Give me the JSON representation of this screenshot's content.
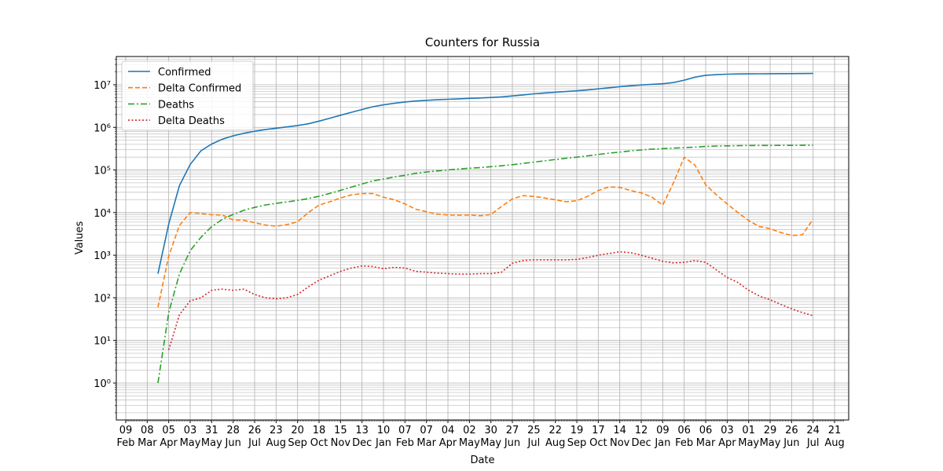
{
  "chart_data": {
    "type": "line",
    "title": "Counters for Russia",
    "xlabel": "Date",
    "ylabel": "Values",
    "categories": [
      "09 Feb",
      null,
      "08 Mar",
      null,
      "05 Apr",
      null,
      "03 May",
      null,
      "31 May",
      null,
      "28 Jun",
      null,
      "26 Jul",
      null,
      "23 Aug",
      null,
      "20 Sep",
      null,
      "18 Oct",
      null,
      "15 Nov",
      null,
      "13 Dec",
      null,
      "10 Jan",
      null,
      "07 Feb",
      null,
      "07 Mar",
      null,
      "04 Apr",
      null,
      "02 May",
      null,
      "30 May",
      null,
      "27 Jun",
      null,
      "25 Jul",
      null,
      "22 Aug",
      null,
      "19 Sep",
      null,
      "17 Oct",
      null,
      "14 Nov",
      null,
      "12 Dec",
      null,
      "09 Jan",
      null,
      "06 Feb",
      null,
      "06 Mar",
      null,
      "03 Apr",
      null,
      "01 May",
      null,
      "29 May",
      null,
      "26 Jun",
      null,
      "24 Jul",
      null,
      "21 Aug"
    ],
    "series": [
      {
        "name": "Confirmed",
        "color": "#1f77b4",
        "linestyle": "solid",
        "values": [
          null,
          null,
          null,
          367,
          5389,
          42853,
          134687,
          281752,
          405843,
          528267,
          634437,
          727162,
          811073,
          885718,
          956749,
          1025505,
          1103399,
          1215001,
          1399334,
          1636781,
          1925825,
          2258373,
          2629699,
          3050248,
          3379103,
          3677352,
          3938153,
          4152344,
          4312181,
          4438628,
          4563056,
          4684148,
          4792354,
          4896868,
          5026168,
          5208687,
          5470931,
          5783333,
          6126541,
          6416046,
          6690140,
          6937333,
          7203461,
          7561271,
          8009273,
          8520133,
          9026581,
          9474358,
          9887867,
          10236526,
          10547599,
          11242000,
          12848000,
          15100000,
          16700000,
          17300000,
          17700000,
          17930000,
          18050000,
          18120000,
          18180000,
          18230000,
          18270000,
          18320000,
          18410000,
          null,
          null
        ]
      },
      {
        "name": "Delta Confirmed",
        "color": "#ff7f0e",
        "linestyle": "dashed",
        "values": [
          null,
          null,
          null,
          60,
          950,
          5000,
          10000,
          9500,
          8900,
          8800,
          6700,
          6600,
          5800,
          5100,
          4800,
          5200,
          6100,
          10000,
          15000,
          18000,
          22000,
          26000,
          28000,
          28000,
          23000,
          20000,
          16000,
          12000,
          10500,
          9200,
          8800,
          8700,
          8800,
          8500,
          9000,
          14000,
          21000,
          25000,
          24000,
          22000,
          20000,
          18000,
          19000,
          24000,
          33000,
          40000,
          39000,
          33000,
          29000,
          23000,
          15000,
          50000,
          200000,
          130000,
          45000,
          26000,
          16000,
          10000,
          6500,
          4700,
          4200,
          3400,
          2900,
          3000,
          7000,
          null,
          null
        ]
      },
      {
        "name": "Deaths",
        "color": "#2ca02c",
        "linestyle": "dashdot",
        "values": [
          null,
          null,
          null,
          1,
          45,
          361,
          1280,
          2631,
          4693,
          6938,
          9073,
          11335,
          13249,
          15131,
          16448,
          17820,
          19339,
          21260,
          24187,
          28235,
          33186,
          39527,
          46941,
          55265,
          61381,
          68412,
          75010,
          83366,
          89809,
          95091,
          100374,
          105582,
          110186,
          113976,
          119903,
          125674,
          133282,
          142253,
          152835,
          164094,
          176450,
          188786,
          199808,
          214372,
          230600,
          248000,
          264000,
          281000,
          296000,
          308000,
          318000,
          326000,
          334000,
          345000,
          357000,
          365000,
          369000,
          372000,
          374000,
          375600,
          376800,
          377800,
          378600,
          379300,
          380400,
          null,
          null
        ]
      },
      {
        "name": "Delta Deaths",
        "color": "#d62728",
        "linestyle": "dotted",
        "values": [
          null,
          null,
          null,
          null,
          6,
          40,
          85,
          100,
          150,
          160,
          150,
          160,
          120,
          100,
          95,
          100,
          120,
          180,
          260,
          330,
          420,
          500,
          560,
          540,
          480,
          520,
          500,
          420,
          400,
          380,
          370,
          360,
          360,
          370,
          370,
          400,
          650,
          750,
          780,
          780,
          780,
          780,
          800,
          880,
          1000,
          1100,
          1200,
          1150,
          1000,
          850,
          720,
          660,
          680,
          750,
          680,
          450,
          300,
          230,
          150,
          110,
          90,
          70,
          55,
          45,
          38,
          null,
          null
        ]
      }
    ],
    "ylim": [
      0.136,
      46000000
    ],
    "log_y": true,
    "minor_grid": true,
    "yticks": [
      {
        "value": 1,
        "label": "10⁰"
      },
      {
        "value": 10,
        "label": "10¹"
      },
      {
        "value": 100,
        "label": "10²"
      },
      {
        "value": 1000,
        "label": "10³"
      },
      {
        "value": 10000,
        "label": "10⁴"
      },
      {
        "value": 100000,
        "label": "10⁵"
      },
      {
        "value": 1000000,
        "label": "10⁶"
      },
      {
        "value": 10000000,
        "label": "10⁷"
      }
    ],
    "grid": true,
    "legend": "upper left"
  }
}
